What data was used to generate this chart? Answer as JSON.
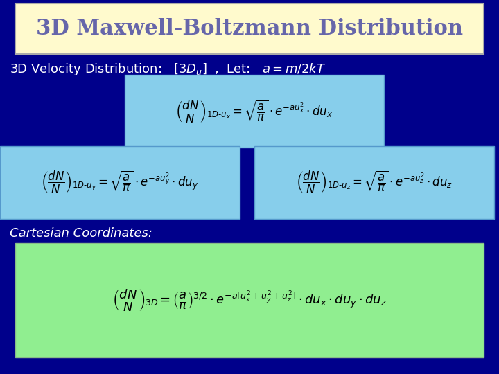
{
  "title": "3D Maxwell-Boltzmann Distribution",
  "title_box_color": "#FFFACD",
  "title_text_color": "#6666AA",
  "slide_bg": "#00008B",
  "eq_box1_color": "#87CEEB",
  "eq_box2_color": "#90EE90",
  "cartesian_label": "Cartesian Coordinates:"
}
